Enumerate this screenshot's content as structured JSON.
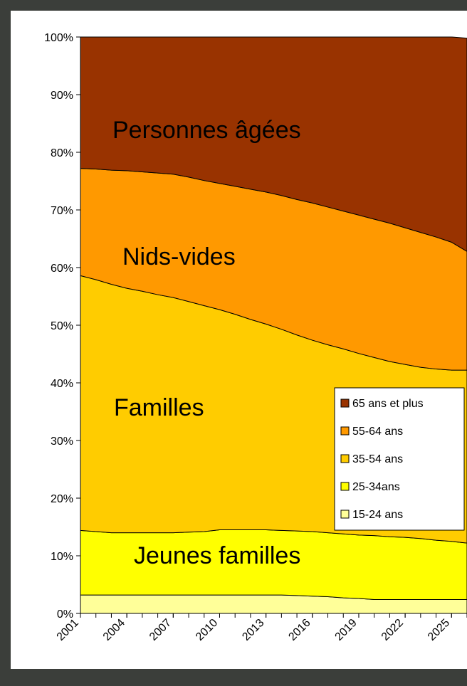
{
  "chart_data": {
    "type": "stacked-area",
    "x": [
      2001,
      2002,
      2003,
      2004,
      2005,
      2006,
      2007,
      2008,
      2009,
      2010,
      2011,
      2012,
      2013,
      2014,
      2015,
      2016,
      2017,
      2018,
      2019,
      2020,
      2021,
      2022,
      2023,
      2024,
      2025,
      2026
    ],
    "xlim": [
      2001,
      2026
    ],
    "xticks": [
      2001,
      2004,
      2007,
      2010,
      2013,
      2016,
      2019,
      2022,
      2025
    ],
    "ylim": [
      0,
      100
    ],
    "yticks": [
      {
        "value": 0,
        "label": "0%"
      },
      {
        "value": 10,
        "label": "10%"
      },
      {
        "value": 20,
        "label": "20%"
      },
      {
        "value": 30,
        "label": "30%"
      },
      {
        "value": 40,
        "label": "40%"
      },
      {
        "value": 50,
        "label": "50%"
      },
      {
        "value": 60,
        "label": "60%"
      },
      {
        "value": 70,
        "label": "70%"
      },
      {
        "value": 80,
        "label": "80%"
      },
      {
        "value": 90,
        "label": "90%"
      },
      {
        "value": 100,
        "label": "100%"
      }
    ],
    "legend_position": "right",
    "annotations": [
      "Personnes âgées",
      "Nids-vides",
      "Familles",
      "Jeunes familles"
    ],
    "series": [
      {
        "name": "15-24 ans",
        "color": "#ffff99",
        "values": [
          3.2,
          3.2,
          3.2,
          3.2,
          3.2,
          3.2,
          3.2,
          3.2,
          3.2,
          3.2,
          3.2,
          3.2,
          3.2,
          3.2,
          3.1,
          3.0,
          2.9,
          2.7,
          2.6,
          2.4,
          2.4,
          2.4,
          2.4,
          2.4,
          2.4,
          2.4
        ]
      },
      {
        "name": "25-34ans",
        "color": "#ffff00",
        "values": [
          11.2,
          11.0,
          10.8,
          10.8,
          10.8,
          10.8,
          10.8,
          10.9,
          11.0,
          11.3,
          11.3,
          11.3,
          11.3,
          11.2,
          11.2,
          11.2,
          11.1,
          11.1,
          11.0,
          11.1,
          10.9,
          10.8,
          10.6,
          10.3,
          10.1,
          9.8
        ]
      },
      {
        "name": "35-54 ans",
        "color": "#ffcc00",
        "values": [
          44.2,
          43.7,
          43.1,
          42.4,
          41.9,
          41.3,
          40.8,
          40.0,
          39.2,
          38.2,
          37.4,
          36.5,
          35.7,
          34.9,
          34.0,
          33.2,
          32.6,
          32.1,
          31.5,
          30.9,
          30.4,
          30.0,
          29.7,
          29.7,
          29.7,
          30.0
        ]
      },
      {
        "name": "55-64 ans",
        "color": "#ff9900",
        "values": [
          18.6,
          19.2,
          19.8,
          20.4,
          20.7,
          21.1,
          21.4,
          21.6,
          21.7,
          21.9,
          22.2,
          22.6,
          22.9,
          23.2,
          23.5,
          23.8,
          23.9,
          23.9,
          24.0,
          24.0,
          24.0,
          23.7,
          23.4,
          22.9,
          22.2,
          20.6
        ]
      },
      {
        "name": "65 ans et plus",
        "color": "#993300",
        "values": [
          22.8,
          22.9,
          23.1,
          23.2,
          23.4,
          23.6,
          23.8,
          24.3,
          24.9,
          25.4,
          25.9,
          26.4,
          26.9,
          27.5,
          28.2,
          28.8,
          29.5,
          30.2,
          30.9,
          31.6,
          32.3,
          33.1,
          33.9,
          34.7,
          35.6,
          37.0
        ]
      }
    ]
  }
}
